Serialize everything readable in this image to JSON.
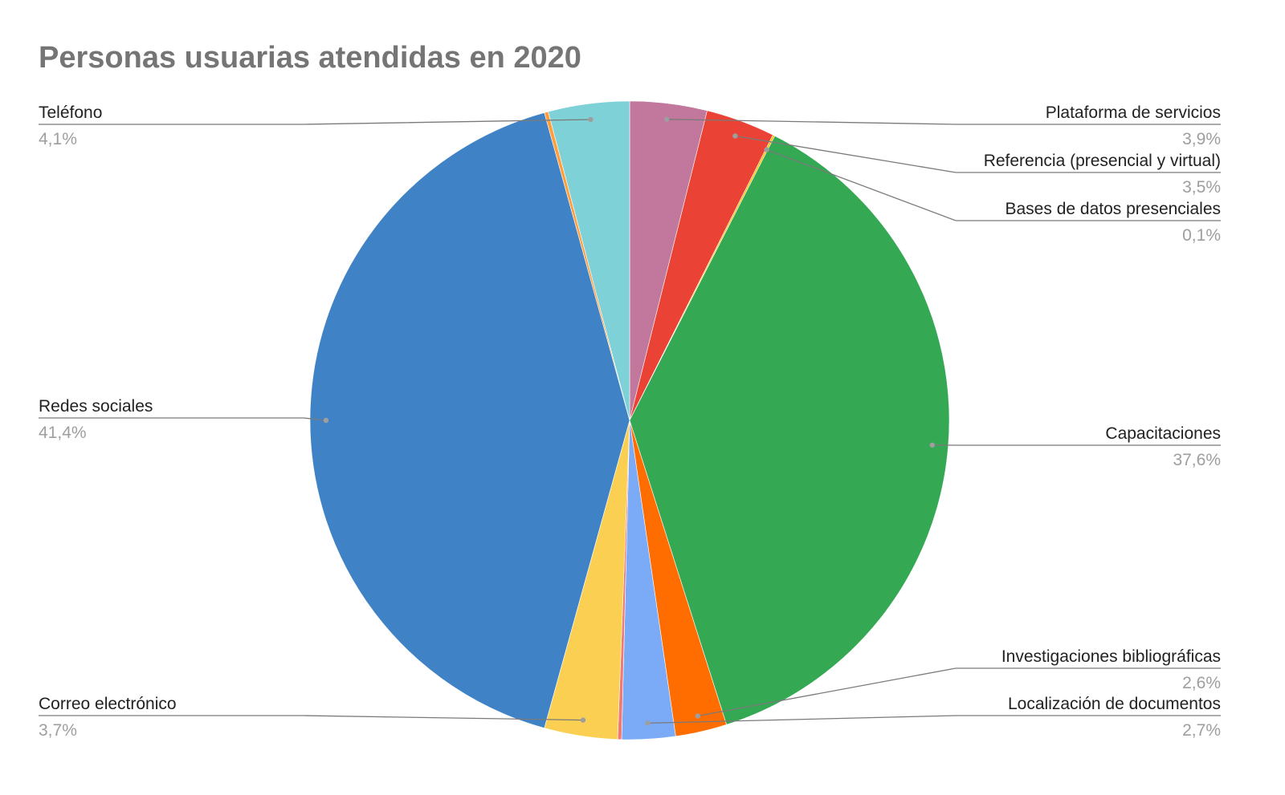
{
  "chart_data": {
    "type": "pie",
    "title": "Personas usuarias atendidas en 2020",
    "slices": [
      {
        "label": "Plataforma de servicios",
        "value": 3.9,
        "value_label": "3,9%",
        "color": "#c2779c"
      },
      {
        "label": "Referencia (presencial y virtual)",
        "value": 3.5,
        "value_label": "3,5%",
        "color": "#ea4335"
      },
      {
        "label": "Bases de datos presenciales",
        "value": 0.1,
        "value_label": "0,1%",
        "color": "#fbbc04"
      },
      {
        "label": "Capacitaciones",
        "value": 37.6,
        "value_label": "37,6%",
        "color": "#34a853"
      },
      {
        "label": "Investigaciones bibliográficas",
        "value": 2.6,
        "value_label": "2,6%",
        "color": "#ff6d01"
      },
      {
        "label": "Localización de documentos",
        "value": 2.7,
        "value_label": "2,7%",
        "color": "#7baaf7"
      },
      {
        "label": "",
        "value": 0.2,
        "value_label": "",
        "color": "#f07b72"
      },
      {
        "label": "Correo electrónico",
        "value": 3.7,
        "value_label": "3,7%",
        "color": "#fbd052"
      },
      {
        "label": "Redes sociales",
        "value": 41.4,
        "value_label": "41,4%",
        "color": "#3f83c6"
      },
      {
        "label": "",
        "value": 0.2,
        "value_label": "",
        "color": "#ff9e3d"
      },
      {
        "label": "Teléfono",
        "value": 4.1,
        "value_label": "4,1%",
        "color": "#7fd1d8"
      }
    ]
  }
}
